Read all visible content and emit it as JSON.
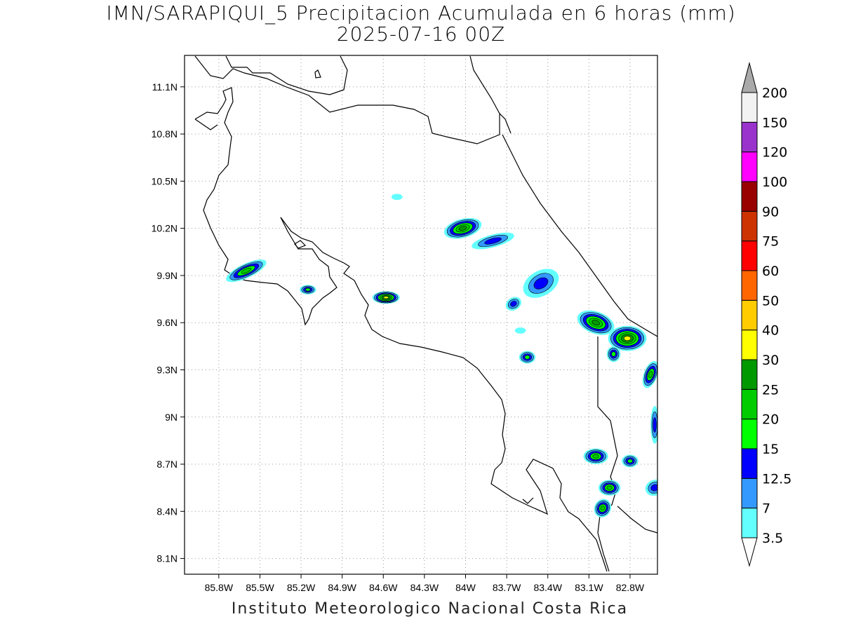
{
  "title": "IMN/SARAPIQUI_5 Precipitacion Acumulada en 6 horas (mm)",
  "subtitle": "2025-07-16 00Z",
  "footer": "Instituto Meteorologico Nacional Costa Rica",
  "map": {
    "lon_range": [
      -86.05,
      -82.6
    ],
    "lat_range": [
      8.0,
      11.3
    ],
    "grid": true,
    "x_ticks": [
      "85.8W",
      "85.5W",
      "85.2W",
      "84.9W",
      "84.6W",
      "84.3W",
      "84W",
      "83.7W",
      "83.4W",
      "83.1W",
      "82.8W"
    ],
    "x_tick_values": [
      -85.8,
      -85.5,
      -85.2,
      -84.9,
      -84.6,
      -84.3,
      -84.0,
      -83.7,
      -83.4,
      -83.1,
      -82.8
    ],
    "y_ticks": [
      "11.1N",
      "10.8N",
      "10.5N",
      "10.2N",
      "9.9N",
      "9.6N",
      "9.3N",
      "9N",
      "8.7N",
      "8.4N",
      "8.1N"
    ],
    "y_tick_values": [
      11.1,
      10.8,
      10.5,
      10.2,
      9.9,
      9.6,
      9.3,
      9.0,
      8.7,
      8.4,
      8.1
    ]
  },
  "colorbar": {
    "labels": [
      "3.5",
      "7",
      "12.5",
      "15",
      "20",
      "25",
      "30",
      "40",
      "50",
      "60",
      "75",
      "90",
      "100",
      "120",
      "150",
      "200"
    ],
    "colors": [
      "#63ffff",
      "#3399ff",
      "#0000ff",
      "#00ff00",
      "#00cc00",
      "#009900",
      "#ffff00",
      "#ffcc00",
      "#ff6600",
      "#ff0000",
      "#cc3300",
      "#990000",
      "#ff00ff",
      "#9933cc",
      "#f2f2f2",
      "#aaaaaa"
    ]
  },
  "precip_cells": [
    {
      "lon": -85.6,
      "lat": 9.93,
      "rx": 0.16,
      "ry": 0.045,
      "rot": -25,
      "level": 4
    },
    {
      "lon": -85.15,
      "lat": 9.81,
      "rx": 0.06,
      "ry": 0.03,
      "rot": 0,
      "level": 3
    },
    {
      "lon": -84.58,
      "lat": 9.76,
      "rx": 0.1,
      "ry": 0.04,
      "rot": 0,
      "level": 6
    },
    {
      "lon": -84.5,
      "lat": 10.4,
      "rx": 0.04,
      "ry": 0.02,
      "rot": 0,
      "level": 0
    },
    {
      "lon": -84.02,
      "lat": 10.2,
      "rx": 0.14,
      "ry": 0.06,
      "rot": -15,
      "level": 5
    },
    {
      "lon": -83.8,
      "lat": 10.12,
      "rx": 0.16,
      "ry": 0.04,
      "rot": -15,
      "level": 2
    },
    {
      "lon": -83.45,
      "lat": 9.85,
      "rx": 0.14,
      "ry": 0.08,
      "rot": -30,
      "level": 2
    },
    {
      "lon": -83.65,
      "lat": 9.72,
      "rx": 0.06,
      "ry": 0.04,
      "rot": -30,
      "level": 2
    },
    {
      "lon": -83.55,
      "lat": 9.38,
      "rx": 0.06,
      "ry": 0.04,
      "rot": 0,
      "level": 3
    },
    {
      "lon": -83.05,
      "lat": 9.6,
      "rx": 0.14,
      "ry": 0.07,
      "rot": 20,
      "level": 5
    },
    {
      "lon": -82.82,
      "lat": 9.5,
      "rx": 0.14,
      "ry": 0.08,
      "rot": 0,
      "level": 6
    },
    {
      "lon": -82.92,
      "lat": 9.4,
      "rx": 0.05,
      "ry": 0.05,
      "rot": 0,
      "level": 3
    },
    {
      "lon": -82.65,
      "lat": 9.27,
      "rx": 0.05,
      "ry": 0.09,
      "rot": 20,
      "level": 4
    },
    {
      "lon": -82.62,
      "lat": 8.95,
      "rx": 0.03,
      "ry": 0.12,
      "rot": 0,
      "level": 2
    },
    {
      "lon": -83.05,
      "lat": 8.75,
      "rx": 0.09,
      "ry": 0.05,
      "rot": 0,
      "level": 4
    },
    {
      "lon": -82.8,
      "lat": 8.72,
      "rx": 0.06,
      "ry": 0.04,
      "rot": 0,
      "level": 3
    },
    {
      "lon": -82.95,
      "lat": 8.55,
      "rx": 0.08,
      "ry": 0.05,
      "rot": 0,
      "level": 4
    },
    {
      "lon": -83.0,
      "lat": 8.42,
      "rx": 0.06,
      "ry": 0.06,
      "rot": 30,
      "level": 4
    },
    {
      "lon": -82.62,
      "lat": 8.55,
      "rx": 0.07,
      "ry": 0.05,
      "rot": -20,
      "level": 2
    },
    {
      "lon": -83.6,
      "lat": 9.55,
      "rx": 0.04,
      "ry": 0.02,
      "rot": 0,
      "level": 0
    }
  ]
}
